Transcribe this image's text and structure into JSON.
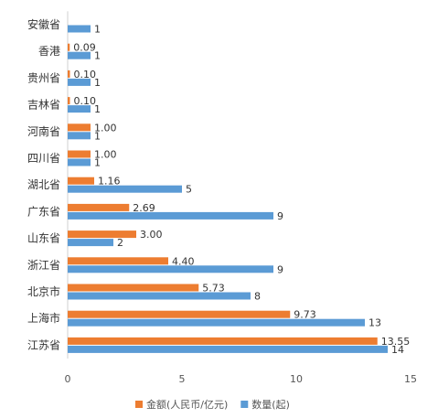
{
  "chart_data": {
    "type": "bar",
    "orientation": "horizontal",
    "categories": [
      "安徽省",
      "香港",
      "贵州省",
      "吉林省",
      "河南省",
      "四川省",
      "湖北省",
      "广东省",
      "山东省",
      "浙江省",
      "北京市",
      "上海市",
      "江苏省"
    ],
    "series": [
      {
        "name": "金额(人民币/亿元)",
        "color": "#ED7D31",
        "values": [
          null,
          0.09,
          0.1,
          0.1,
          1.0,
          1.0,
          1.16,
          2.69,
          3.0,
          4.4,
          5.73,
          9.73,
          13.55
        ],
        "labels": [
          "",
          "0.09",
          "0.10",
          "0.10",
          "1.00",
          "1.00",
          "1.16",
          "2.69",
          "3.00",
          "4.40",
          "5.73",
          "9.73",
          "13.55"
        ]
      },
      {
        "name": "数量(起)",
        "color": "#5B9BD5",
        "values": [
          1,
          1,
          1,
          1,
          1,
          1,
          5,
          9,
          2,
          9,
          8,
          13,
          14
        ],
        "labels": [
          "1",
          "1",
          "1",
          "1",
          "1",
          "1",
          "5",
          "9",
          "2",
          "9",
          "8",
          "13",
          "14"
        ]
      }
    ],
    "xlim": [
      0,
      15
    ],
    "xticks": [
      "0",
      "5",
      "10",
      "15"
    ],
    "grid": false,
    "legend_position": "bottom"
  }
}
